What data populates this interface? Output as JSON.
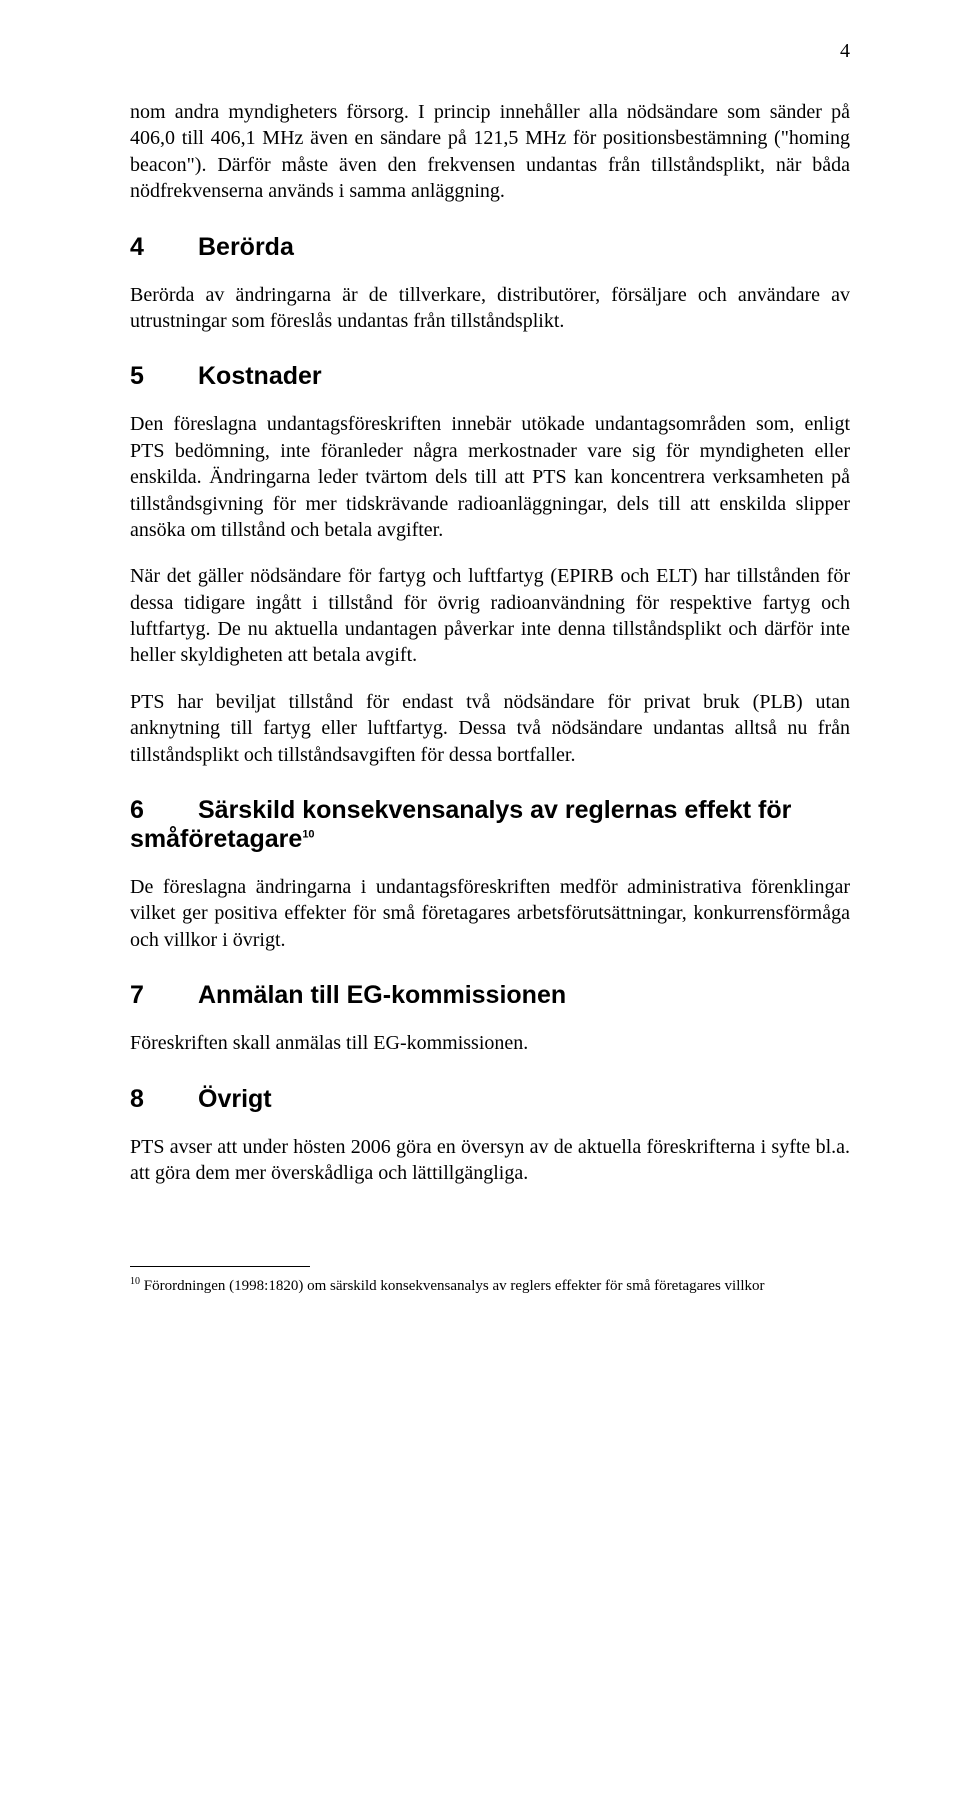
{
  "page_number": "4",
  "intro_paragraph": "nom andra myndigheters försorg. I princip innehåller alla nödsändare som sänder på 406,0 till 406,1 MHz även en sändare på 121,5 MHz för positionsbestämning (\"homing beacon\"). Därför måste även den frekvensen undantas från tillståndsplikt, när båda nödfrekvenserna används i samma anläggning.",
  "sections": {
    "s4": {
      "num": "4",
      "title": "Berörda",
      "p1": "Berörda av ändringarna är de tillverkare, distributörer, försäljare och användare av utrustningar som föreslås undantas från tillståndsplikt."
    },
    "s5": {
      "num": "5",
      "title": "Kostnader",
      "p1": "Den föreslagna undantagsföreskriften innebär utökade undantagsområden som, enligt PTS bedömning, inte föranleder några merkostnader vare sig för myndigheten eller enskilda. Ändringarna leder tvärtom dels till att PTS kan koncentrera verksamheten på tillståndsgivning för mer tidskrävande radioanläggningar, dels till att enskilda slipper ansöka om tillstånd och betala avgifter.",
      "p2": "När det gäller nödsändare för fartyg och luftfartyg (EPIRB och ELT) har tillstånden för dessa tidigare ingått i tillstånd för övrig radioanvändning för respektive fartyg och luftfartyg. De nu aktuella undantagen påverkar inte denna tillståndsplikt och därför inte heller skyldigheten att betala avgift.",
      "p3": "PTS har beviljat tillstånd för endast två nödsändare för privat bruk (PLB) utan anknytning till fartyg eller luftfartyg. Dessa två nödsändare undantas alltså nu från tillståndsplikt och tillståndsavgiften för dessa bortfaller."
    },
    "s6": {
      "num": "6",
      "title": "Särskild konsekvensanalys av reglernas effekt för småföretagare",
      "sup": "10",
      "p1": "De föreslagna ändringarna i undantagsföreskriften medför administrativa förenklingar vilket ger positiva effekter för små företagares arbetsförutsättningar, konkurrensförmåga och villkor i övrigt."
    },
    "s7": {
      "num": "7",
      "title": "Anmälan till EG-kommissionen",
      "p1": "Föreskriften skall anmälas till EG-kommissionen."
    },
    "s8": {
      "num": "8",
      "title": "Övrigt",
      "p1": "PTS avser att under hösten 2006 göra en översyn av de aktuella föreskrifterna i syfte bl.a. att göra dem mer överskådliga och lättillgängliga."
    }
  },
  "footnote": {
    "num": "10",
    "text": " Förordningen (1998:1820) om särskild konsekvensanalys av reglers effekter för små företagares villkor"
  }
}
